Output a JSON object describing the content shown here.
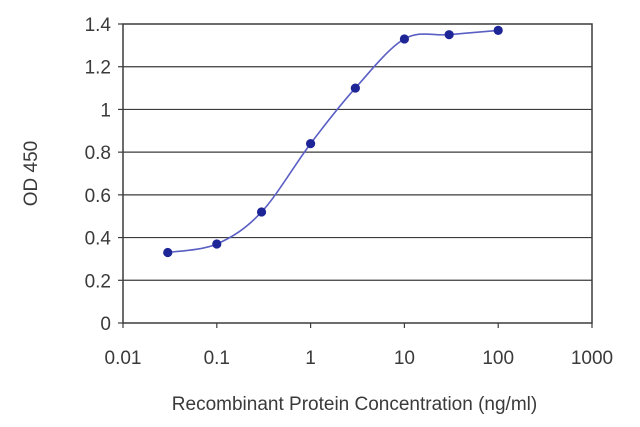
{
  "chart_data": {
    "type": "line",
    "title": "",
    "xlabel": "Recombinant Protein Concentration (ng/ml)",
    "ylabel": "OD 450",
    "xscale": "log",
    "xlim": [
      0.01,
      1000
    ],
    "ylim": [
      0,
      1.4
    ],
    "x_ticks": [
      "0.01",
      "0.1",
      "1",
      "10",
      "100",
      "1000"
    ],
    "y_ticks": [
      "0",
      "0.2",
      "0.4",
      "0.6",
      "0.8",
      "1",
      "1.2",
      "1.4"
    ],
    "grid": "horizontal",
    "legend": "none",
    "series": [
      {
        "x": [
          0.03,
          0.1,
          0.3,
          1,
          3,
          10,
          30,
          100
        ],
        "y": [
          0.33,
          0.37,
          0.52,
          0.84,
          1.1,
          1.33,
          1.35,
          1.37
        ]
      }
    ],
    "colors": {
      "line": "#5a5fc4",
      "marker": "#1e2596",
      "grid": "#3c3c3c",
      "frame": "#3c3c3c"
    }
  }
}
